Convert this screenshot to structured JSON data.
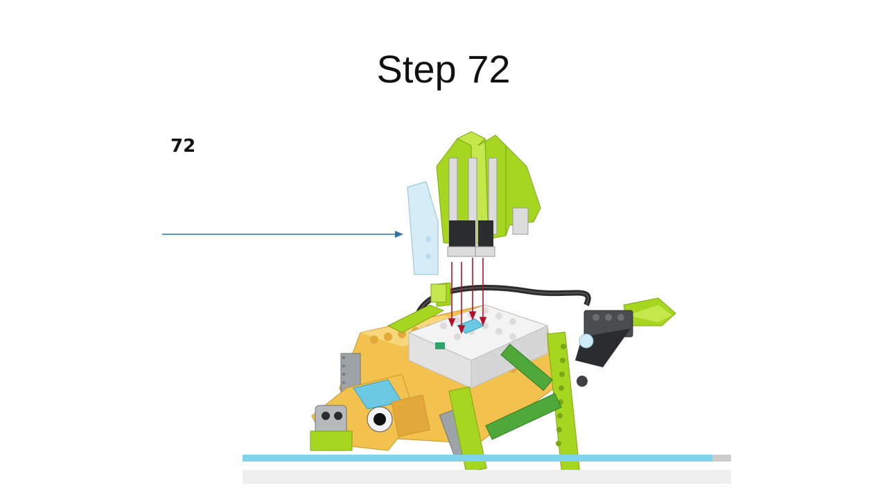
{
  "slide": {
    "title": "Step 72",
    "step_number": "72"
  },
  "progress": {
    "fraction": 0.962
  },
  "colors": {
    "lime": "#a6d61f",
    "lime_dark": "#7aa814",
    "yellow": "#f2c14e",
    "gray": "#8a8f94",
    "dark_gray": "#3d3f42",
    "white_brick": "#f3f3f3",
    "blue_accent": "#6cc9e4",
    "trans_clear": "#cfe9f5",
    "arrow_red": "#b2102a",
    "pointer_blue": "#2f72a8",
    "progress_fill": "#7fd3ea",
    "progress_track": "#cccccc"
  },
  "icons": {
    "pointer": "arrow-right-icon",
    "assembly": "lego-chameleon-model"
  }
}
